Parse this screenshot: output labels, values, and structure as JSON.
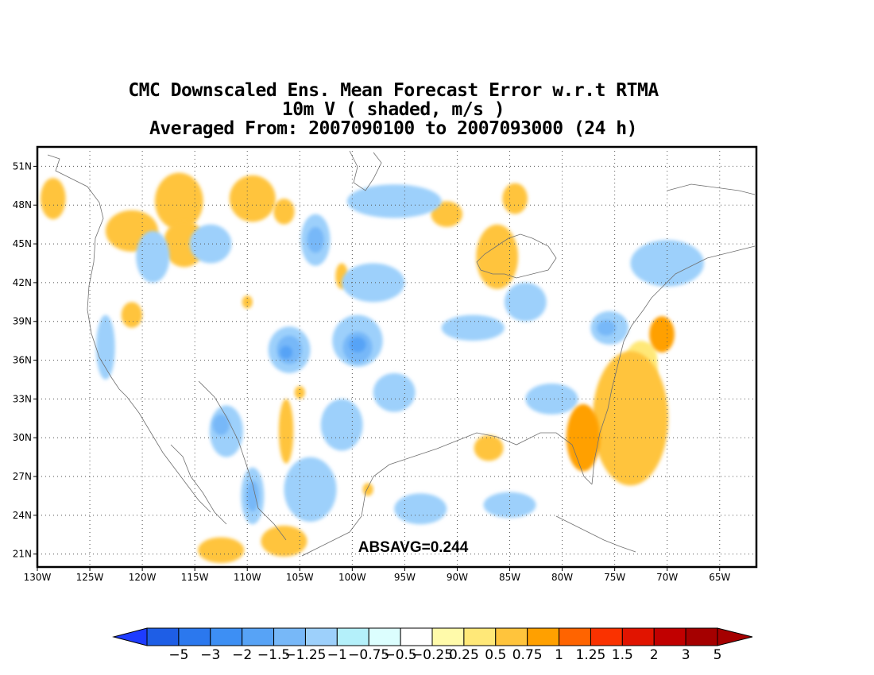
{
  "title": {
    "line1": "CMC Downscaled Ens. Mean Forecast Error w.r.t RTMA",
    "line2": "10m V ( shaded, m/s )",
    "line3": "Averaged From: 2007090100 to 2007093000 (24 h)"
  },
  "map": {
    "lat_labels": [
      "51N",
      "48N",
      "45N",
      "42N",
      "39N",
      "36N",
      "33N",
      "30N",
      "27N",
      "24N",
      "21N"
    ],
    "lat_values": [
      51,
      48,
      45,
      42,
      39,
      36,
      33,
      30,
      27,
      24,
      21
    ],
    "lon_labels": [
      "130W",
      "125W",
      "120W",
      "115W",
      "110W",
      "105W",
      "100W",
      "95W",
      "90W",
      "85W",
      "80W",
      "75W",
      "70W",
      "65W"
    ],
    "lon_values": [
      -130,
      -125,
      -120,
      -115,
      -110,
      -105,
      -100,
      -95,
      -90,
      -85,
      -80,
      -75,
      -70,
      -65
    ],
    "extent": {
      "lon_min": -130,
      "lon_max": -61.5,
      "lat_min": 20,
      "lat_max": 52.5
    },
    "absavg": "ABSAVG=0.244",
    "grid": "dotted"
  },
  "colorbar": {
    "labels": [
      "−5",
      "−3",
      "−2",
      "−1.5",
      "−1.25",
      "−1",
      "−0.75",
      "−0.5",
      "−0.25",
      "0.25",
      "0.5",
      "0.75",
      "1",
      "1.25",
      "1.5",
      "2",
      "3",
      "5"
    ],
    "colors": [
      "#1e5ee6",
      "#2b78ee",
      "#3d8ff4",
      "#57a3f6",
      "#77b8f8",
      "#9dd0fb",
      "#b4f0fa",
      "#dcfefe",
      "#ffffff",
      "#fffaaa",
      "#ffe878",
      "#ffc43c",
      "#ffa000",
      "#ff6400",
      "#fa3200",
      "#e11400",
      "#c10000",
      "#a50000"
    ],
    "low_extend_color": "#1e3cff",
    "high_extend_color": "#a50000"
  },
  "regions": [
    {
      "kind": "pos",
      "level": 3,
      "lon": -73.5,
      "lat": 31.5,
      "rx": 3.6,
      "ry": 5.2
    },
    {
      "kind": "pos",
      "level": 2,
      "lon": -73.0,
      "lat": 31.5,
      "rx": 2.6,
      "ry": 4.0
    },
    {
      "kind": "pos",
      "level": 1,
      "lon": -72.5,
      "lat": 32.0,
      "rx": 1.6,
      "ry": 2.4
    },
    {
      "kind": "pos",
      "level": 1,
      "lon": -71.8,
      "lat": 36.5,
      "rx": 0.8,
      "ry": 0.8
    },
    {
      "kind": "pos",
      "level": 2,
      "lon": -72.5,
      "lat": 35.5,
      "rx": 1.6,
      "ry": 2.0
    },
    {
      "kind": "pos",
      "level": 1,
      "lon": -74.5,
      "lat": 29.8,
      "rx": 1.2,
      "ry": 1.2
    },
    {
      "kind": "pos",
      "level": 1,
      "lon": -71.5,
      "lat": 29.8,
      "rx": 1.0,
      "ry": 1.2
    },
    {
      "kind": "pos",
      "level": 4,
      "lon": -78.0,
      "lat": 30.0,
      "rx": 1.6,
      "ry": 2.6
    },
    {
      "kind": "pos",
      "level": 4,
      "lon": -70.5,
      "lat": 38.0,
      "rx": 1.2,
      "ry": 1.4
    },
    {
      "kind": "pos",
      "level": 3,
      "lon": -128.5,
      "lat": 48.5,
      "rx": 1.2,
      "ry": 1.6
    },
    {
      "kind": "pos",
      "level": 3,
      "lon": -116.5,
      "lat": 48.3,
      "rx": 2.3,
      "ry": 2.2
    },
    {
      "kind": "pos",
      "level": 2,
      "lon": -116.0,
      "lat": 49.3,
      "rx": 0.8,
      "ry": 0.7
    },
    {
      "kind": "pos",
      "level": 3,
      "lon": -109.5,
      "lat": 48.5,
      "rx": 2.2,
      "ry": 1.8
    },
    {
      "kind": "pos",
      "level": 3,
      "lon": -121.0,
      "lat": 46.0,
      "rx": 2.5,
      "ry": 1.6
    },
    {
      "kind": "pos",
      "level": 3,
      "lon": -116.0,
      "lat": 45.0,
      "rx": 2.0,
      "ry": 1.8
    },
    {
      "kind": "pos",
      "level": 3,
      "lon": -106.5,
      "lat": 47.5,
      "rx": 1.0,
      "ry": 1.0
    },
    {
      "kind": "pos",
      "level": 3,
      "lon": -86.2,
      "lat": 44.0,
      "rx": 2.0,
      "ry": 2.5
    },
    {
      "kind": "pos",
      "level": 3,
      "lon": -91.0,
      "lat": 47.3,
      "rx": 1.5,
      "ry": 1.0
    },
    {
      "kind": "pos",
      "level": 3,
      "lon": -84.5,
      "lat": 48.5,
      "rx": 1.2,
      "ry": 1.2
    },
    {
      "kind": "pos",
      "level": 3,
      "lon": -106.3,
      "lat": 30.5,
      "rx": 0.7,
      "ry": 2.5
    },
    {
      "kind": "pos",
      "level": 2,
      "lon": -106.3,
      "lat": 31.0,
      "rx": 0.4,
      "ry": 1.0
    },
    {
      "kind": "pos",
      "level": 3,
      "lon": -87.0,
      "lat": 29.2,
      "rx": 1.4,
      "ry": 1.0
    },
    {
      "kind": "pos",
      "level": 3,
      "lon": -106.5,
      "lat": 22.0,
      "rx": 2.2,
      "ry": 1.2
    },
    {
      "kind": "pos",
      "level": 3,
      "lon": -112.5,
      "lat": 21.3,
      "rx": 2.2,
      "ry": 1.0
    },
    {
      "kind": "pos",
      "level": 3,
      "lon": -121.0,
      "lat": 39.5,
      "rx": 1.0,
      "ry": 1.0
    },
    {
      "kind": "pos",
      "level": 3,
      "lon": -105.0,
      "lat": 33.5,
      "rx": 0.5,
      "ry": 0.5
    },
    {
      "kind": "pos",
      "level": 3,
      "lon": -98.5,
      "lat": 26.0,
      "rx": 0.5,
      "ry": 0.5
    },
    {
      "kind": "pos",
      "level": 3,
      "lon": -101.0,
      "lat": 42.5,
      "rx": 0.6,
      "ry": 1.0
    },
    {
      "kind": "pos",
      "level": 3,
      "lon": -110.0,
      "lat": 40.5,
      "rx": 0.5,
      "ry": 0.5
    },
    {
      "kind": "neg",
      "level": 3,
      "lon": -103.5,
      "lat": 45.3,
      "rx": 1.4,
      "ry": 2.0
    },
    {
      "kind": "neg",
      "level": 3,
      "lon": -99.5,
      "lat": 37.5,
      "rx": 2.4,
      "ry": 2.0
    },
    {
      "kind": "neg",
      "level": 3,
      "lon": -106.0,
      "lat": 36.8,
      "rx": 2.0,
      "ry": 1.8
    },
    {
      "kind": "neg",
      "level": 3,
      "lon": -96.0,
      "lat": 48.3,
      "rx": 4.5,
      "ry": 1.3
    },
    {
      "kind": "neg",
      "level": 3,
      "lon": -119.0,
      "lat": 44.0,
      "rx": 1.6,
      "ry": 2.0
    },
    {
      "kind": "neg",
      "level": 3,
      "lon": -112.0,
      "lat": 30.5,
      "rx": 1.6,
      "ry": 2.0
    },
    {
      "kind": "neg",
      "level": 3,
      "lon": -109.5,
      "lat": 25.5,
      "rx": 1.1,
      "ry": 2.2
    },
    {
      "kind": "neg",
      "level": 3,
      "lon": -123.5,
      "lat": 37.0,
      "rx": 0.9,
      "ry": 2.5
    },
    {
      "kind": "neg",
      "level": 3,
      "lon": -75.5,
      "lat": 38.5,
      "rx": 1.8,
      "ry": 1.3
    },
    {
      "kind": "neg",
      "level": 3,
      "lon": -70.0,
      "lat": 43.5,
      "rx": 3.5,
      "ry": 1.8
    },
    {
      "kind": "neg",
      "level": 3,
      "lon": -88.5,
      "lat": 38.5,
      "rx": 3.0,
      "ry": 1.0
    },
    {
      "kind": "neg",
      "level": 3,
      "lon": -85.0,
      "lat": 24.8,
      "rx": 2.5,
      "ry": 1.0
    },
    {
      "kind": "neg",
      "level": 3,
      "lon": -113.5,
      "lat": 45.0,
      "rx": 2.0,
      "ry": 1.5
    },
    {
      "kind": "neg",
      "level": 3,
      "lon": -98.0,
      "lat": 42.0,
      "rx": 3.0,
      "ry": 1.5
    },
    {
      "kind": "neg",
      "level": 3,
      "lon": -104.0,
      "lat": 26.0,
      "rx": 2.5,
      "ry": 2.5
    },
    {
      "kind": "neg",
      "level": 3,
      "lon": -93.5,
      "lat": 24.5,
      "rx": 2.5,
      "ry": 1.2
    },
    {
      "kind": "neg",
      "level": 3,
      "lon": -96.0,
      "lat": 33.5,
      "rx": 2.0,
      "ry": 1.5
    },
    {
      "kind": "neg",
      "level": 3,
      "lon": -81.0,
      "lat": 33.0,
      "rx": 2.5,
      "ry": 1.2
    },
    {
      "kind": "neg",
      "level": 3,
      "lon": -83.5,
      "lat": 40.5,
      "rx": 2.0,
      "ry": 1.5
    },
    {
      "kind": "neg",
      "level": 3,
      "lon": -101.0,
      "lat": 31.0,
      "rx": 2.0,
      "ry": 2.0
    },
    {
      "kind": "neg",
      "level": 4,
      "lon": -103.5,
      "lat": 45.3,
      "rx": 0.8,
      "ry": 1.0
    },
    {
      "kind": "neg",
      "level": 4,
      "lon": -99.5,
      "lat": 37.0,
      "rx": 1.4,
      "ry": 1.2
    },
    {
      "kind": "neg",
      "level": 4,
      "lon": -106.0,
      "lat": 36.8,
      "rx": 1.2,
      "ry": 1.1
    },
    {
      "kind": "neg",
      "level": 4,
      "lon": -75.8,
      "lat": 38.5,
      "rx": 0.9,
      "ry": 0.6
    },
    {
      "kind": "neg",
      "level": 4,
      "lon": -109.5,
      "lat": 25.5,
      "rx": 0.6,
      "ry": 1.2
    },
    {
      "kind": "neg",
      "level": 4,
      "lon": -112.5,
      "lat": 31.0,
      "rx": 0.8,
      "ry": 0.8
    },
    {
      "kind": "neg",
      "level": 5,
      "lon": -99.5,
      "lat": 37.2,
      "rx": 0.8,
      "ry": 0.6
    },
    {
      "kind": "neg",
      "level": 5,
      "lon": -106.3,
      "lat": 36.6,
      "rx": 0.6,
      "ry": 0.5
    }
  ]
}
